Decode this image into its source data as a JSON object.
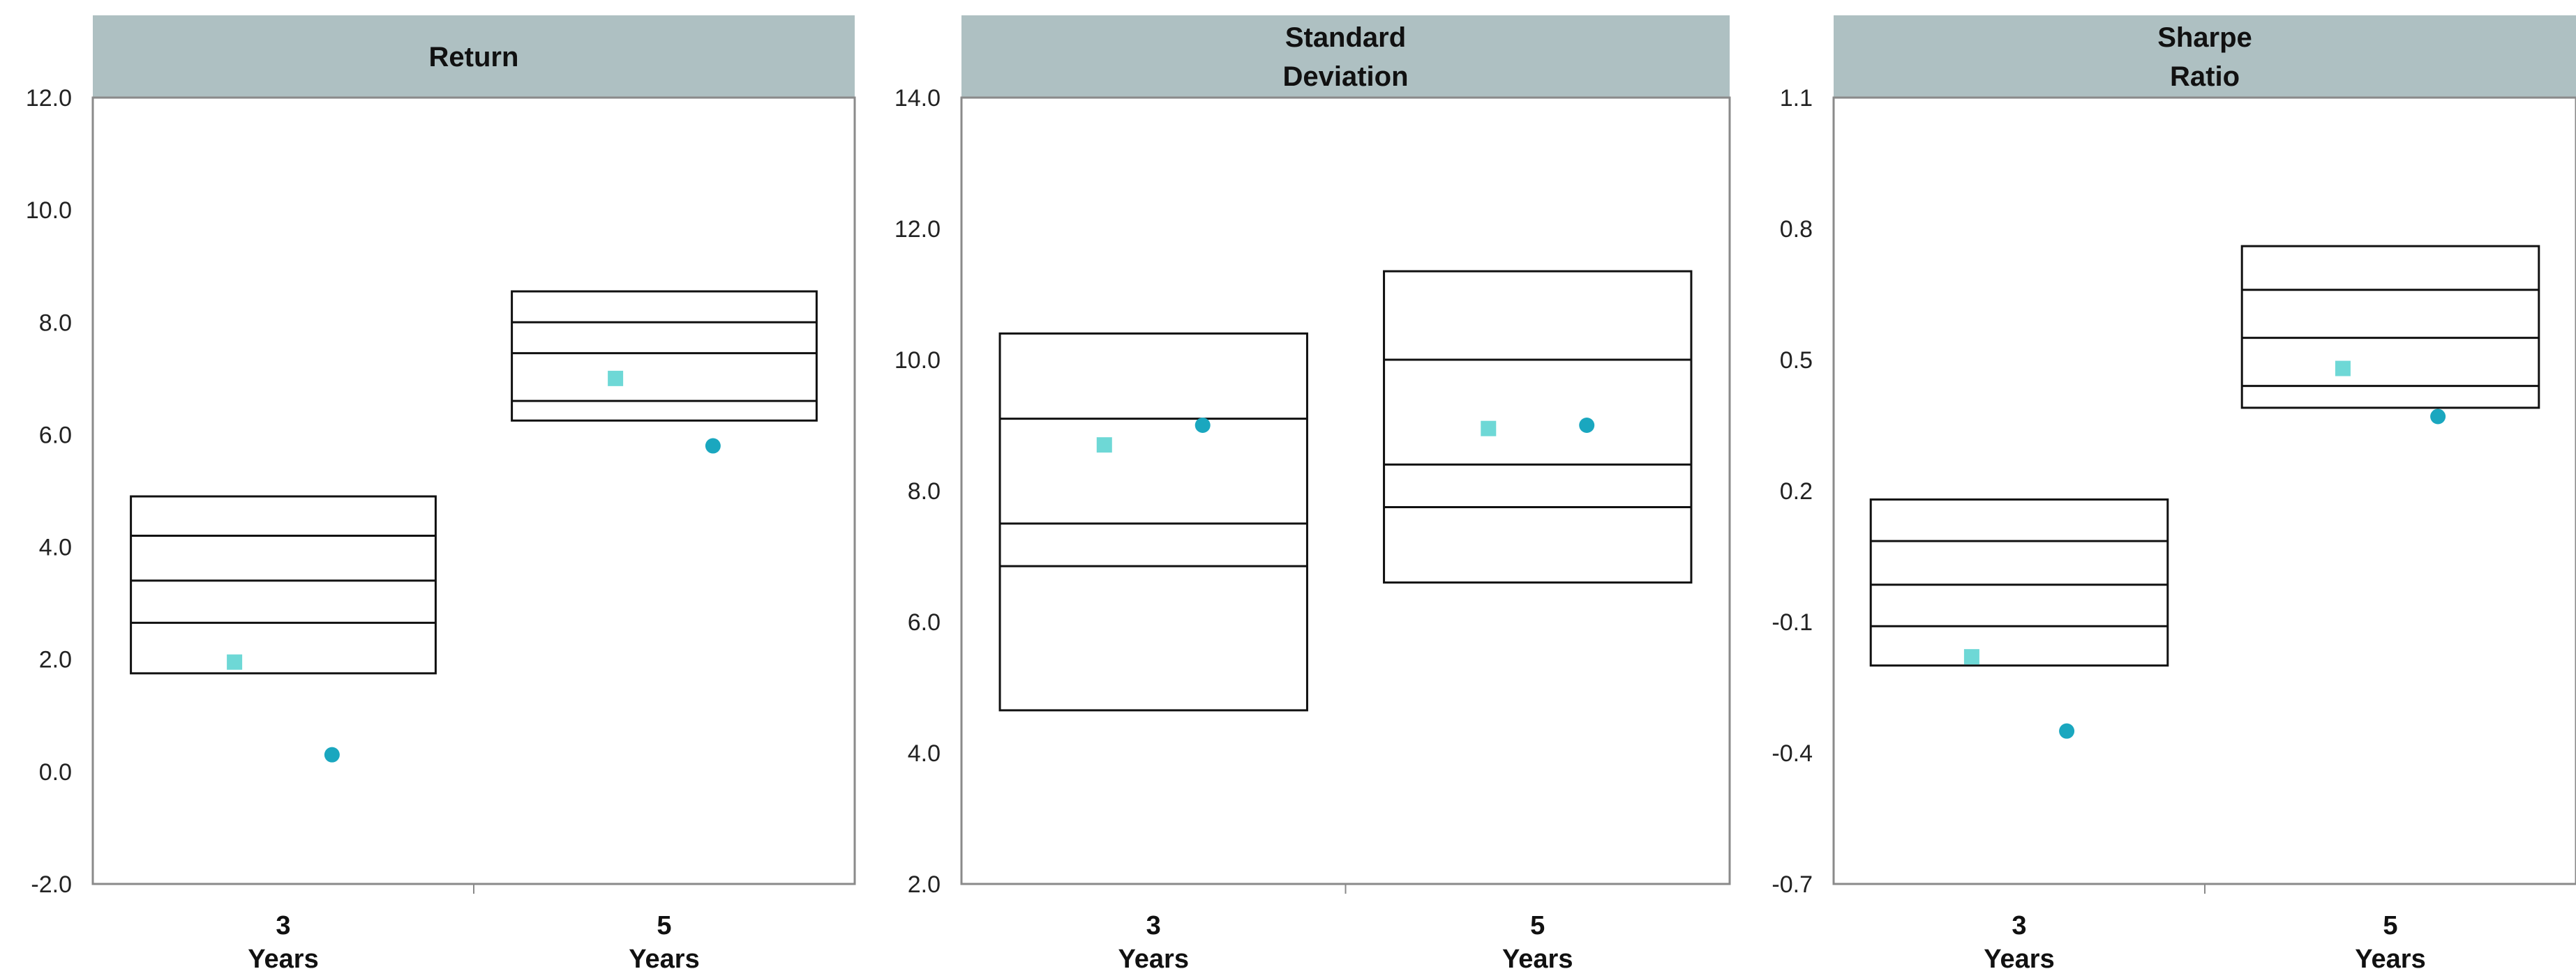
{
  "colors": {
    "header_bg": "#aec0c2",
    "panel_border": "#8a8a8a",
    "box_line": "#111111",
    "square_marker": "#6ed8d6",
    "circle_marker": "#1aa7bf"
  },
  "chart_data": [
    {
      "type": "box",
      "title": "Return",
      "title_lines": [
        "Return"
      ],
      "ylim": [
        -2.0,
        12.0
      ],
      "yticks": [
        "-2.0",
        "0.0",
        "2.0",
        "4.0",
        "6.0",
        "8.0",
        "10.0",
        "12.0"
      ],
      "categories": [
        {
          "number": "3",
          "label": "Years",
          "box_lines": [
            1.75,
            2.65,
            3.4,
            4.2,
            4.9
          ],
          "square": 1.95,
          "circle": 0.3
        },
        {
          "number": "5",
          "label": "Years",
          "box_lines": [
            6.25,
            6.6,
            7.45,
            8.0,
            8.55
          ],
          "square": 7.0,
          "circle": 5.8
        }
      ]
    },
    {
      "type": "box",
      "title": "Standard Deviation",
      "title_lines": [
        "Standard",
        "Deviation"
      ],
      "ylim": [
        2.0,
        14.0
      ],
      "yticks": [
        "2.0",
        "4.0",
        "6.0",
        "8.0",
        "10.0",
        "12.0",
        "14.0"
      ],
      "categories": [
        {
          "number": "3",
          "label": "Years",
          "box_lines": [
            4.65,
            6.85,
            7.5,
            9.1,
            10.4
          ],
          "square": 8.7,
          "circle": 9.0
        },
        {
          "number": "5",
          "label": "Years",
          "box_lines": [
            6.6,
            7.75,
            8.4,
            10.0,
            11.35
          ],
          "square": 8.95,
          "circle": 9.0
        }
      ]
    },
    {
      "type": "box",
      "title": "Sharpe Ratio",
      "title_lines": [
        "Sharpe",
        "Ratio"
      ],
      "ylim": [
        -0.7,
        1.1
      ],
      "yticks": [
        "-0.7",
        "-0.4",
        "-0.1",
        "0.2",
        "0.5",
        "0.8",
        "1.1"
      ],
      "categories": [
        {
          "number": "3",
          "label": "Years",
          "box_lines": [
            -0.2,
            -0.11,
            -0.015,
            0.085,
            0.18
          ],
          "square": -0.18,
          "circle": -0.35
        },
        {
          "number": "5",
          "label": "Years",
          "box_lines": [
            0.39,
            0.44,
            0.55,
            0.66,
            0.76
          ],
          "square": 0.48,
          "circle": 0.37
        }
      ]
    }
  ]
}
